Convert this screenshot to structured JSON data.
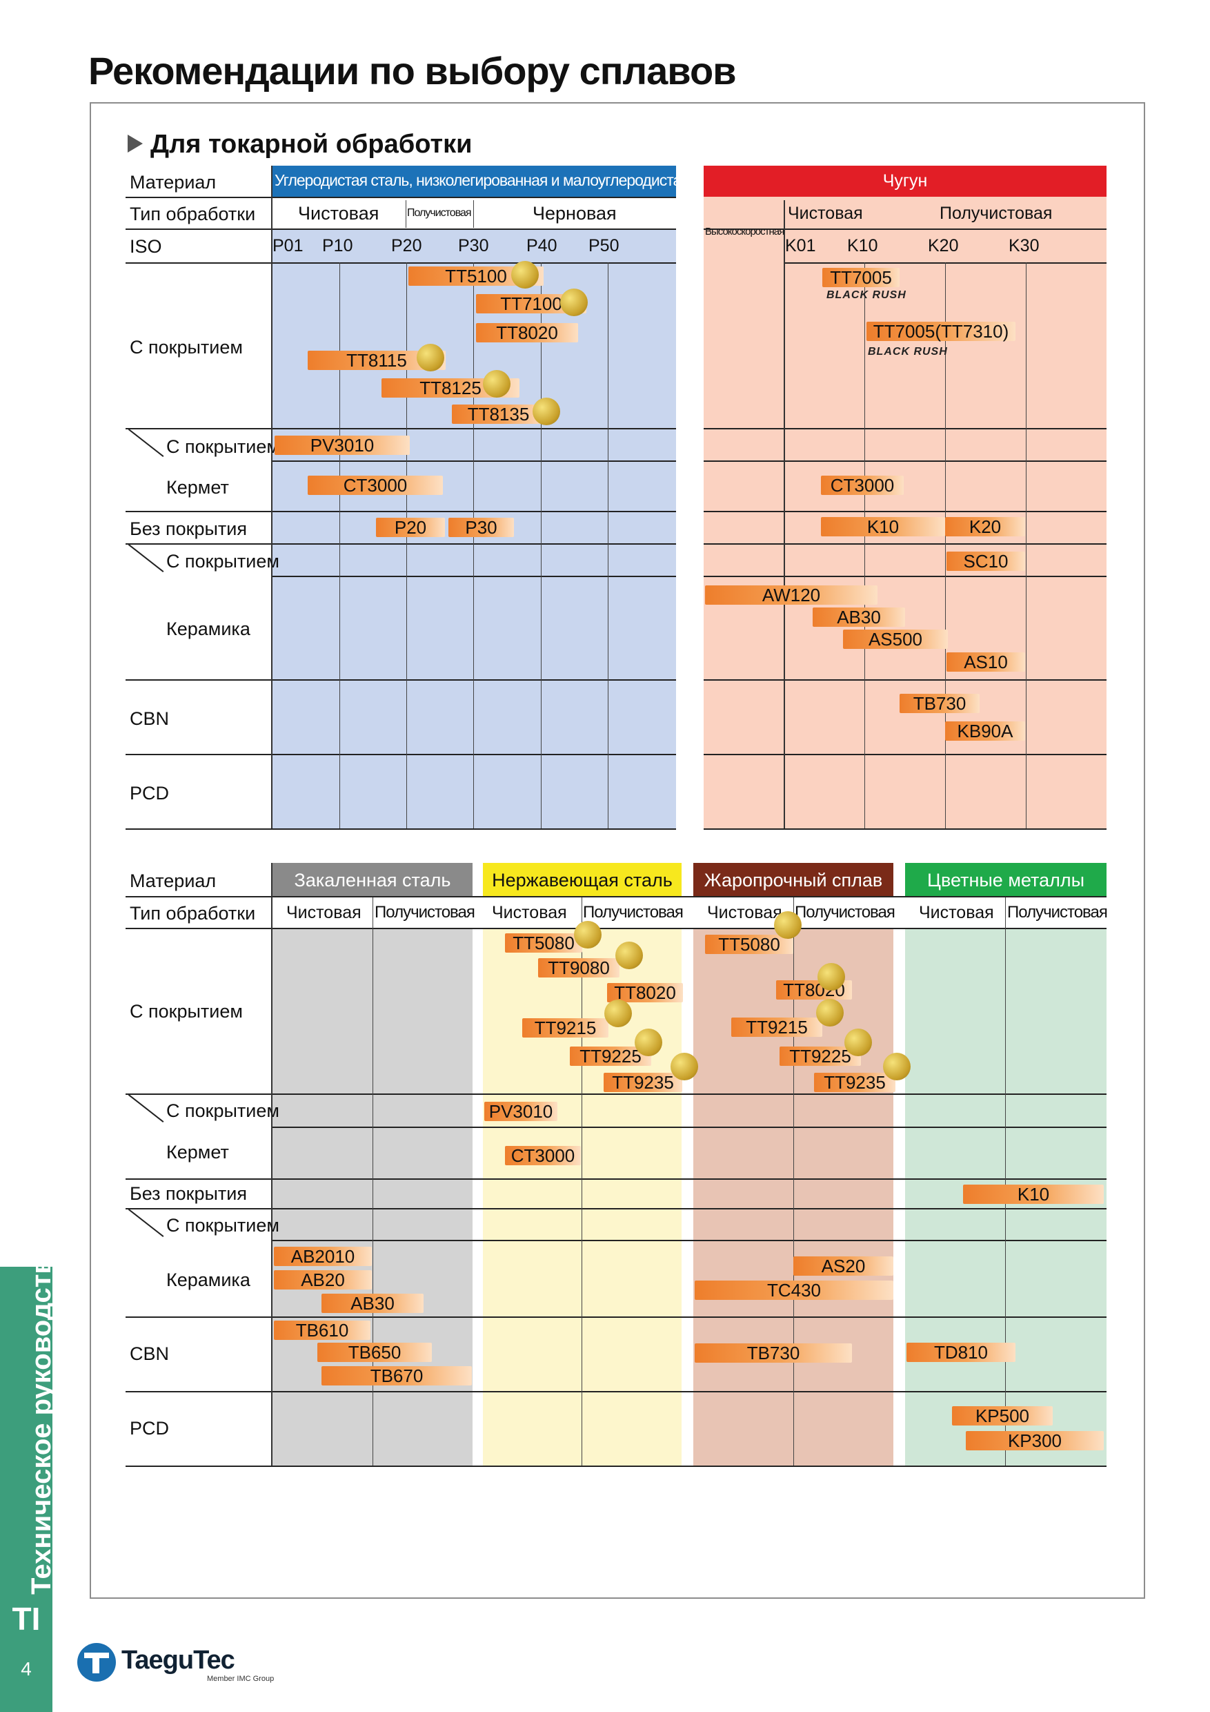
{
  "page_title": "Рекомендации по выбору сплавов",
  "section_title": "Для токарной обработки",
  "row_labels": {
    "material": "Материал",
    "process_type": "Тип обработки",
    "iso": "ISO",
    "coated": "С покрытием",
    "cermet_coated": "С покрытием",
    "cermet": "Кермет",
    "uncoated": "Без покрытия",
    "ceramic_coated": "С покрытием",
    "ceramic": "Керамика",
    "cbn": "CBN",
    "pcd": "PCD"
  },
  "steel_table": {
    "material": "Углеродистая сталь, низколегированная и малоуглеродистая сталь",
    "process": {
      "finishing": "Чистовая",
      "semi": "Получистовая",
      "roughing": "Черновая"
    },
    "iso": [
      "P01",
      "P10",
      "P20",
      "P30",
      "P40",
      "P50"
    ],
    "grades": {
      "coated": [
        "TT5100",
        "TT7100",
        "TT8020",
        "TT8115",
        "TT8125",
        "TT8135"
      ],
      "cermet_coated": [
        "PV3010"
      ],
      "cermet": [
        "CT3000"
      ],
      "uncoated": [
        "P20",
        "P30"
      ]
    }
  },
  "cast_iron_table": {
    "material": "Чугун",
    "process": {
      "high_speed": "Высокоскоростная",
      "finishing": "Чистовая",
      "semi": "Получистовая"
    },
    "iso": [
      "K01",
      "K10",
      "K20",
      "K30"
    ],
    "grades": {
      "coated": [
        "TT7005",
        "TT7005(TT7310)"
      ],
      "brand_mark": "BLACK RUSH",
      "cermet": [
        "CT3000"
      ],
      "uncoated": [
        "K10",
        "K20"
      ],
      "ceramic_coated": [
        "SC10"
      ],
      "ceramic": [
        "AW120",
        "AB30",
        "AS500",
        "AS10"
      ],
      "cbn": [
        "TB730",
        "KB90A"
      ]
    }
  },
  "lower_table": {
    "process": {
      "finishing": "Чистовая",
      "semi": "Получистовая"
    },
    "groups": {
      "hardened": {
        "title": "Закаленная сталь",
        "ceramic": [
          "AB2010",
          "AB20",
          "AB30"
        ],
        "cbn": [
          "TB610",
          "TB650",
          "TB670"
        ]
      },
      "stainless": {
        "title": "Нержавеющая сталь",
        "coated": [
          "TT5080",
          "TT9080",
          "TT8020",
          "TT9215",
          "TT9225",
          "TT9235"
        ],
        "cermet_coated": [
          "PV3010"
        ],
        "cermet": [
          "CT3000"
        ]
      },
      "heat_resistant": {
        "title": "Жаропрочный сплав",
        "coated": [
          "TT5080",
          "TT8020",
          "TT9215",
          "TT9225",
          "TT9235"
        ],
        "ceramic": [
          "AS20",
          "TC430"
        ],
        "cbn": [
          "TB730"
        ]
      },
      "nonferrous": {
        "title": "Цветные металлы",
        "uncoated": [
          "K10"
        ],
        "cbn": [
          "TD810"
        ],
        "pcd": [
          "KP500",
          "KP300"
        ]
      }
    }
  },
  "colors": {
    "steel_band": "#c9d6ee",
    "steel_header": "#1c72b8",
    "cast_band": "#fbd2c1",
    "cast_header": "#e21e26",
    "hardened_band": "#d3d3d3",
    "hardened_header": "#8a8a8a",
    "stainless_band": "#fdf6cc",
    "stainless_header": "#f7e81e",
    "heat_band": "#e8c4b4",
    "heat_header": "#7a2a18",
    "nonferrous_band": "#cfe7d7",
    "nonferrous_header": "#1faa4a",
    "side_tab": "#3d9e7c"
  },
  "footer": {
    "side_label": "Техническое руководство",
    "tab_code": "TI",
    "page_number": "4",
    "logo_text": "TaeguTec",
    "logo_subtext": "Member IMC Group"
  }
}
